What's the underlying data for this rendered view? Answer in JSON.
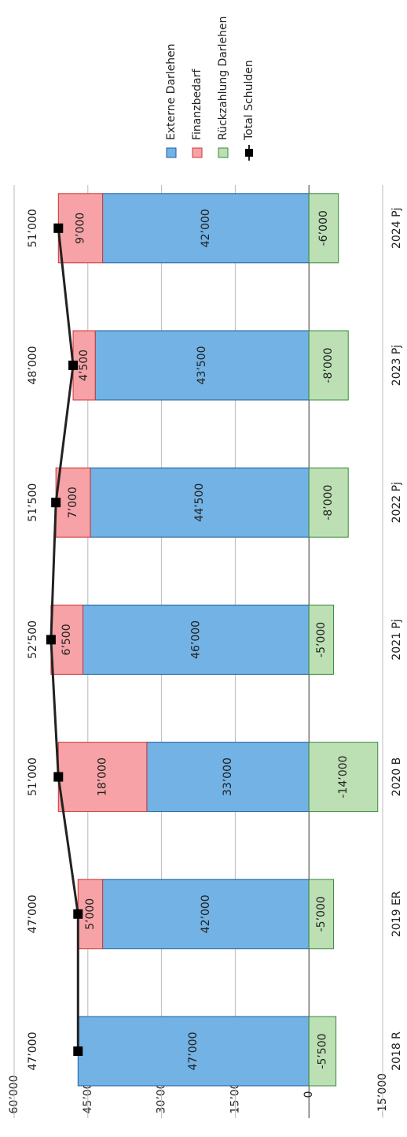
{
  "chart_data": {
    "type": "stacked_bar_line",
    "categories": [
      "2018 R",
      "2019 ER",
      "2020 B",
      "2021 Pj",
      "2022 Pj",
      "2023 Pj",
      "2024 Pj"
    ],
    "series": [
      {
        "name": "Externe Darlehen",
        "color": "#72b2e4",
        "values": [
          47000,
          42000,
          33000,
          46000,
          44500,
          43500,
          42000
        ],
        "value_labels": [
          "47’000",
          "42’000",
          "33’000",
          "46’000",
          "44’500",
          "43’500",
          "42’000"
        ]
      },
      {
        "name": "Finanzbedarf",
        "color": "#f6a2a6",
        "values": [
          null,
          5000,
          18000,
          6500,
          7000,
          4500,
          9000
        ],
        "value_labels": [
          null,
          "5’000",
          "18’000",
          "6’500",
          "7’000",
          "4’500",
          "9’000"
        ]
      },
      {
        "name": "Rückzahlung Darlehen",
        "color": "#bce0b4",
        "values": [
          -5500,
          -5000,
          -14000,
          -5000,
          -8000,
          -8000,
          -6000
        ],
        "value_labels": [
          "-5’500",
          "-5’000",
          "-14’000",
          "-5’000",
          "-8’000",
          "-8’000",
          "-6’000"
        ]
      },
      {
        "name": "Total Schulden",
        "color": "#222222",
        "type": "line",
        "values": [
          47000,
          47000,
          51000,
          52500,
          51500,
          48000,
          51000
        ],
        "value_labels": [
          "47’000",
          "47’000",
          "51’000",
          "52’500",
          "51’500",
          "48’000",
          "51’000"
        ]
      }
    ],
    "ylim": [
      60000,
      -15000
    ],
    "yticks": [
      {
        "value": 60000,
        "label": "60’000"
      },
      {
        "value": 45000,
        "label": "45’000"
      },
      {
        "value": 30000,
        "label": "30’000"
      },
      {
        "value": 15000,
        "label": "15’000"
      },
      0,
      {
        "value": -15000,
        "label": "-15’000"
      }
    ],
    "grid": true
  }
}
